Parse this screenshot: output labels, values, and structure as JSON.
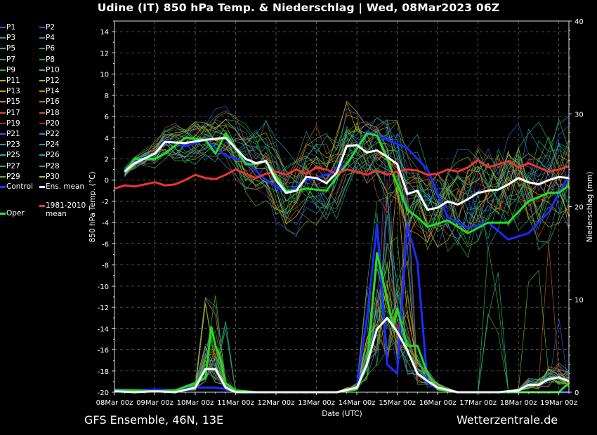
{
  "header": {
    "title": "Udine  (IT)  850 hPa Temp. & Niederschlag | Wed, 08Mar2023 06Z"
  },
  "footer": {
    "left": "GFS Ensemble, 46N, 13E",
    "right": "Wetterzentrale.de"
  },
  "legend": [
    {
      "label": "P1",
      "color": "#2f5bd8"
    },
    {
      "label": "P2",
      "color": "#2f5bd8"
    },
    {
      "label": "P3",
      "color": "#2a9bb4"
    },
    {
      "label": "P4",
      "color": "#2a9bb4"
    },
    {
      "label": "P5",
      "color": "#2ab0a0"
    },
    {
      "label": "P6",
      "color": "#1fae5e"
    },
    {
      "label": "P7",
      "color": "#1fae5e"
    },
    {
      "label": "P8",
      "color": "#1fae5e"
    },
    {
      "label": "P9",
      "color": "#2fb34a"
    },
    {
      "label": "P10",
      "color": "#52c22a"
    },
    {
      "label": "P11",
      "color": "#b7b22a"
    },
    {
      "label": "P12",
      "color": "#b7b22a"
    },
    {
      "label": "P13",
      "color": "#d0a11e"
    },
    {
      "label": "P14",
      "color": "#d0891e"
    },
    {
      "label": "P15",
      "color": "#d0891e"
    },
    {
      "label": "P16",
      "color": "#d07a1e"
    },
    {
      "label": "P17",
      "color": "#c8531e"
    },
    {
      "label": "P18",
      "color": "#c8531e"
    },
    {
      "label": "P19",
      "color": "#b22222"
    },
    {
      "label": "P20",
      "color": "#b22222"
    },
    {
      "label": "P21",
      "color": "#2f5bd8"
    },
    {
      "label": "P22",
      "color": "#2a86d8"
    },
    {
      "label": "P23",
      "color": "#2a9bb4"
    },
    {
      "label": "P24",
      "color": "#2a9bb4"
    },
    {
      "label": "P25",
      "color": "#2ab0a0"
    },
    {
      "label": "P26",
      "color": "#1fae8e"
    },
    {
      "label": "P27",
      "color": "#2fb34a"
    },
    {
      "label": "P28",
      "color": "#2fb34a"
    },
    {
      "label": "P29",
      "color": "#52c22a"
    },
    {
      "label": "P30",
      "color": "#c8c21e"
    },
    {
      "label": "Control",
      "color": "#2233ff"
    },
    {
      "label": "Ens. mean",
      "color": "#ffffff"
    },
    {
      "label": "Oper",
      "color": "#33ee33"
    }
  ],
  "legend_extra": {
    "label1": "1981-2010",
    "label2": "mean",
    "color": "#ee3333"
  },
  "colors": {
    "control": "#1a2cff",
    "mean": "#ffffff",
    "oper": "#22dd22",
    "clim": "#ee3333",
    "grid": "#666666"
  },
  "chart_data": {
    "type": "line",
    "ylabel": "850 hPa Temp. (°C)",
    "y2label": "Niederschlag (mm)",
    "xlabel": "Date (UTC)",
    "ylim": [
      -20,
      15
    ],
    "y2lim": [
      0,
      40
    ],
    "yticks": [
      -20,
      -18,
      -16,
      -14,
      -12,
      -10,
      -8,
      -6,
      -4,
      -2,
      0,
      2,
      4,
      6,
      8,
      10,
      12,
      14
    ],
    "y2ticks": [
      0,
      10,
      20,
      30,
      40
    ],
    "xlim": [
      0,
      11.25
    ],
    "x_tick_labels": [
      "08Mar 00z",
      "09Mar 00z",
      "10Mar 00z",
      "11Mar 00z",
      "12Mar 00z",
      "13Mar 00z",
      "14Mar 00z",
      "15Mar 00z",
      "16Mar 00z",
      "17Mar 00z",
      "18Mar 00z",
      "19Mar 00z"
    ],
    "grid": true,
    "series": [
      {
        "name": "Control",
        "axis": "temp",
        "x": [
          0.25,
          0.5,
          1,
          1.25,
          1.75,
          2.25,
          2.75,
          3.25,
          3.75,
          4.25,
          4.75,
          5.25,
          5.75,
          6.25,
          6.75,
          7.25,
          7.75,
          8.25,
          8.75,
          9.25,
          9.75,
          10.25,
          10.75,
          11.25
        ],
        "y": [
          1,
          1.8,
          2.5,
          3.8,
          3.2,
          3.8,
          2.3,
          1.8,
          0,
          -1.2,
          0,
          0.5,
          1.5,
          4.6,
          3.8,
          3,
          1,
          -3.5,
          -4.5,
          -4,
          -5.6,
          -5,
          -3,
          0.5
        ]
      },
      {
        "name": "Ens. mean",
        "axis": "temp",
        "x": [
          0.25,
          0.5,
          1,
          1.25,
          1.75,
          2.25,
          2.75,
          3.25,
          3.5,
          3.75,
          4,
          4.25,
          4.5,
          4.75,
          5,
          5.25,
          5.5,
          5.75,
          6,
          6.25,
          6.5,
          6.75,
          7,
          7.25,
          7.5,
          7.75,
          8,
          8.25,
          8.5,
          8.75,
          9,
          9.25,
          9.5,
          9.75,
          10,
          10.25,
          10.5,
          10.75,
          11,
          11.25
        ],
        "y": [
          0.8,
          1.6,
          2.5,
          3.6,
          3.5,
          3.8,
          4,
          2,
          1.6,
          1.8,
          0,
          -1.2,
          -1,
          0.3,
          0.2,
          -0.3,
          0.7,
          3.2,
          3.3,
          2.6,
          2.8,
          2.2,
          1.5,
          -1.3,
          -1,
          -2.8,
          -2.6,
          -2,
          -2.3,
          -1.8,
          -1.2,
          -1,
          -0.9,
          -0.4,
          0.2,
          -0.2,
          -0.4,
          0,
          0.3,
          0.2
        ]
      },
      {
        "name": "Oper",
        "axis": "temp",
        "x": [
          0.25,
          0.5,
          1,
          1.25,
          1.75,
          2.25,
          2.5,
          2.75,
          3.25,
          3.5,
          3.75,
          4.25,
          4.5,
          4.75,
          5.25,
          5.75,
          6.25,
          6.5,
          6.75,
          7.25,
          7.5,
          7.75,
          8.25,
          8.75,
          9.25,
          9.75,
          10.25,
          10.75,
          11,
          11.25
        ],
        "y": [
          0.8,
          2,
          2,
          2.5,
          4,
          3.8,
          2.5,
          4.4,
          1.5,
          1.5,
          1.8,
          -1,
          -1,
          -0.8,
          -1,
          1.5,
          4.4,
          4.2,
          2,
          -2.8,
          -3.5,
          -4.4,
          -3.8,
          -5,
          -4,
          -4,
          -2,
          -1.2,
          -1.2,
          -0.5
        ]
      },
      {
        "name": "1981-2010 mean",
        "axis": "temp",
        "x": [
          0,
          0.25,
          0.5,
          0.75,
          1,
          1.25,
          1.5,
          1.75,
          2,
          2.25,
          2.5,
          2.75,
          3,
          3.25,
          3.5,
          3.75,
          4,
          4.25,
          4.5,
          4.75,
          5,
          5.25,
          5.5,
          5.75,
          6,
          6.25,
          6.5,
          6.75,
          7,
          7.25,
          7.5,
          7.75,
          8,
          8.25,
          8.5,
          8.75,
          9,
          9.25,
          9.5,
          9.75,
          10,
          10.25,
          10.5,
          10.75,
          11,
          11.25
        ],
        "y": [
          -0.8,
          -0.5,
          -0.6,
          -0.4,
          -0.2,
          -0.5,
          -0.4,
          0,
          0.5,
          0.2,
          0.1,
          0.5,
          1,
          0.6,
          0.2,
          0.6,
          0.8,
          0.5,
          1,
          0.6,
          1.2,
          1,
          0.6,
          1,
          0.8,
          0.5,
          0.9,
          0.5,
          0.8,
          1,
          0.9,
          0.5,
          0.6,
          1,
          0.8,
          1.2,
          1.9,
          1.2,
          1.5,
          1.8,
          1.2,
          1.6,
          1.2,
          0.8,
          1,
          1.3
        ]
      },
      {
        "name": "Control precip",
        "axis": "precip",
        "x": [
          0,
          0.5,
          1,
          1.5,
          2,
          2.5,
          3,
          3.5,
          4,
          4.5,
          5,
          5.5,
          6,
          6.25,
          6.5,
          6.75,
          7,
          7.25,
          7.5,
          7.75,
          8,
          8.5,
          9,
          9.5,
          10,
          10.5,
          11,
          11.25
        ],
        "y": [
          0.3,
          0.2,
          0.3,
          0.2,
          0.5,
          0.5,
          0.2,
          0,
          0,
          0,
          0,
          0,
          0.5,
          8,
          18,
          3,
          2,
          18,
          14,
          1,
          0.4,
          0,
          0,
          0,
          0,
          0,
          0,
          0
        ]
      },
      {
        "name": "Ens. mean precip",
        "axis": "precip",
        "x": [
          0,
          0.5,
          1,
          1.5,
          2,
          2.25,
          2.5,
          2.75,
          3,
          3.5,
          4,
          4.5,
          5,
          5.5,
          6,
          6.25,
          6.5,
          6.75,
          7,
          7.25,
          7.5,
          7.75,
          8,
          8.5,
          9,
          9.5,
          10,
          10.25,
          10.5,
          10.75,
          11,
          11.25
        ],
        "y": [
          0.1,
          0,
          0.1,
          0,
          0.5,
          2.5,
          2.5,
          0.5,
          0,
          0,
          0,
          0,
          0,
          0,
          0.5,
          3,
          6.8,
          8,
          6.5,
          4.5,
          2,
          1.2,
          0.5,
          0,
          0,
          0,
          0.2,
          0.8,
          0.8,
          1.4,
          1.6,
          1.2
        ]
      },
      {
        "name": "Oper precip",
        "axis": "precip",
        "x": [
          0,
          0.5,
          1,
          1.5,
          2,
          2.25,
          2.4,
          2.5,
          2.6,
          2.75,
          3,
          3.5,
          4,
          4.5,
          5,
          5.5,
          6,
          6.25,
          6.5,
          6.75,
          6.9,
          7,
          7.25,
          7.5,
          7.75,
          8,
          8.5,
          9,
          9.5,
          10,
          10.5,
          11,
          11.25
        ],
        "y": [
          0.2,
          0.2,
          0.1,
          0.2,
          1,
          1.5,
          7,
          5,
          4,
          1,
          0.2,
          0,
          0,
          0,
          0,
          0,
          0.3,
          3,
          15,
          10,
          7,
          9,
          5,
          5,
          2,
          0.3,
          0,
          0,
          0,
          0,
          0,
          0,
          1
        ]
      }
    ]
  }
}
